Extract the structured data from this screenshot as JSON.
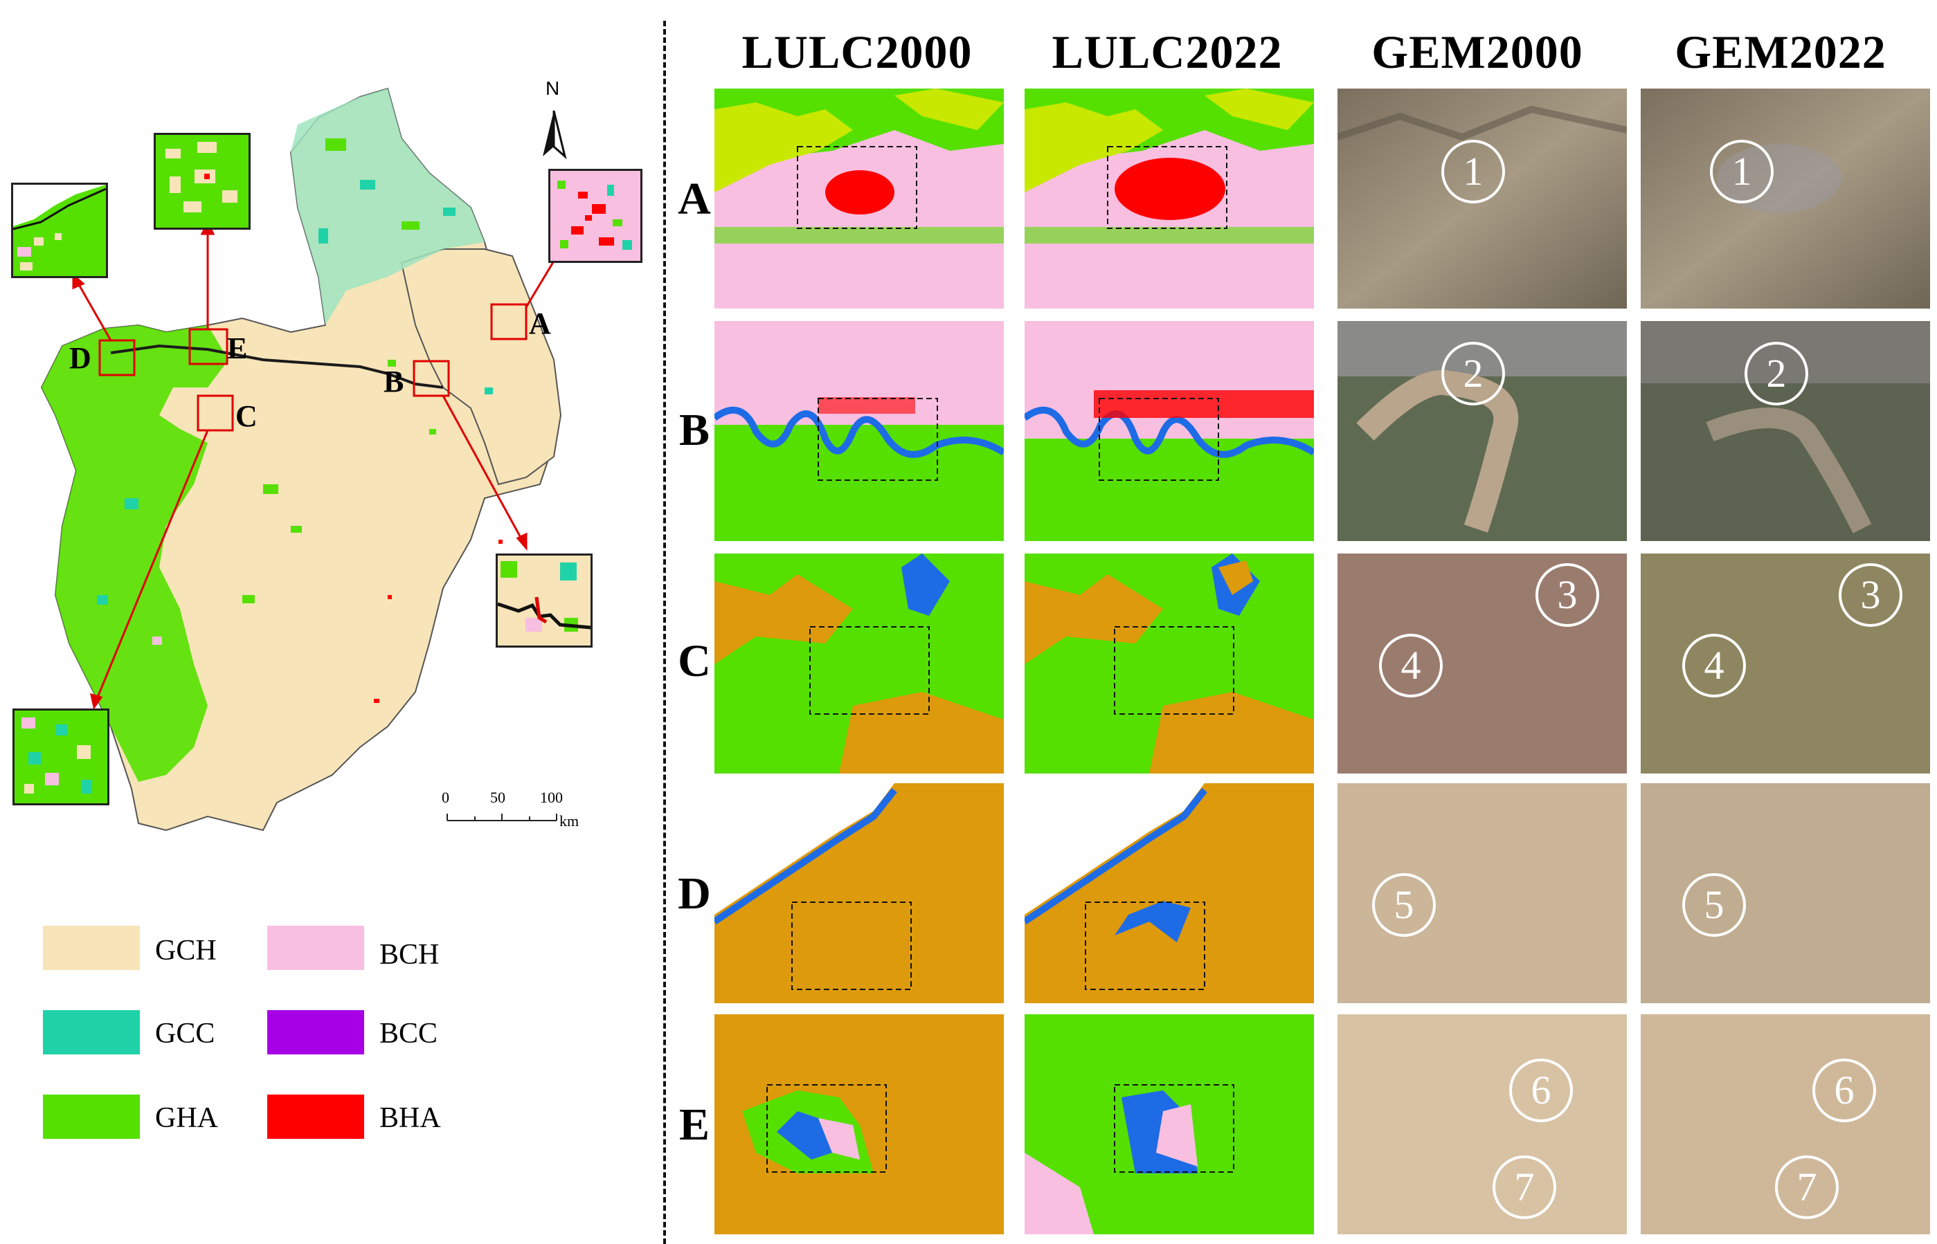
{
  "map": {
    "north_label": "N",
    "region_labels": [
      "A",
      "B",
      "C",
      "D",
      "E"
    ],
    "scale_ticks": [
      "0",
      "50",
      "100"
    ],
    "scale_unit": "km"
  },
  "legend": [
    {
      "label": "GCH",
      "color": "#f7e4b8"
    },
    {
      "label": "BCH",
      "color": "#f8bfe0"
    },
    {
      "label": "GCC",
      "color": "#20d2a8"
    },
    {
      "label": "BCC",
      "color": "#a800e6"
    },
    {
      "label": "GHA",
      "color": "#55e000"
    },
    {
      "label": "BHA",
      "color": "#ff0000"
    }
  ],
  "columns": [
    "LULC2000",
    "LULC2022",
    "GEM2000",
    "GEM2022"
  ],
  "rows": [
    "A",
    "B",
    "C",
    "D",
    "E"
  ],
  "markers": {
    "A": [
      "1",
      "1"
    ],
    "B": [
      "2",
      "2"
    ],
    "C": [
      "3",
      "4",
      "3",
      "4"
    ],
    "D": [
      "5",
      "5"
    ],
    "E": [
      "6",
      "7",
      "6",
      "7"
    ]
  },
  "colors": {
    "grassland_base": "#f7e4b8",
    "grass_green": "#55e000",
    "built": "#ff0000",
    "water": "#1e6be6",
    "cropland_pink": "#f8bfe0",
    "bare_orange": "#dd9a0c",
    "forest_yellow": "#d8f000"
  }
}
